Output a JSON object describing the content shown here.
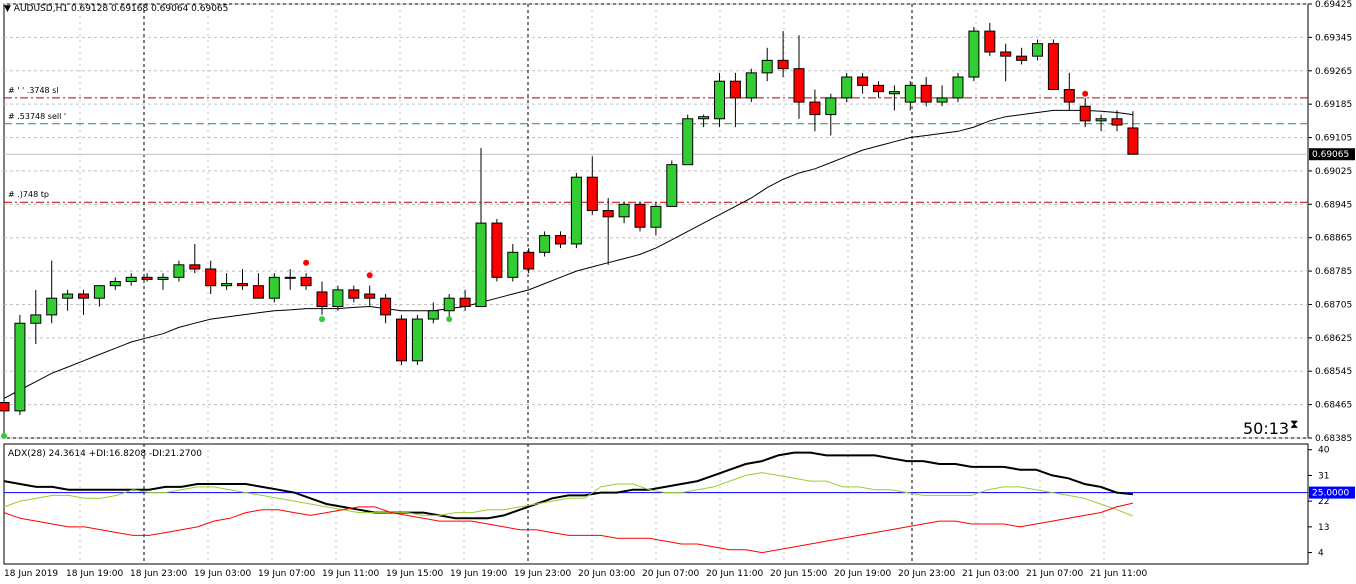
{
  "window": {
    "symbol_title": "AUDUSD,H1",
    "ohlc_text": "0.69128 0.69168 0.69064 0.69065",
    "timer": "50:13"
  },
  "colors": {
    "bull": "#32cd32",
    "bear": "#ff0000",
    "ma_line": "#000000",
    "grid": "#c0c0c0",
    "sl_line": "#c00000",
    "entry_line": "#2e8b57",
    "adx_line": "#000000",
    "plus_di": "#9acd32",
    "minus_di": "#ff0000",
    "level_line": "#0000ff"
  },
  "trade_lines": [
    {
      "label": "#  ' '  .3748 sl",
      "price": 0.692,
      "style": "sl"
    },
    {
      "label": "#  .53748 sell  '",
      "price": 0.69138,
      "style": "entry"
    },
    {
      "label": "#      .)748 tp",
      "price": 0.6895,
      "style": "tp"
    }
  ],
  "chart_data": [
    {
      "type": "candlestick",
      "title": "AUDUSD,H1",
      "ylim": [
        0.68385,
        0.69425
      ],
      "y_ticks": [
        "0.69425",
        "0.69345",
        "0.69265",
        "0.69185",
        "0.69105",
        "0.69025",
        "0.68945",
        "0.68865",
        "0.68785",
        "0.68705",
        "0.68625",
        "0.68545",
        "0.68465",
        "0.68385"
      ],
      "current_price": "0.69065",
      "x_tick_labels": [
        "18 Jun 2019",
        "18 Jun 19:00",
        "18 Jun 23:00",
        "19 Jun 03:00",
        "19 Jun 07:00",
        "19 Jun 11:00",
        "19 Jun 15:00",
        "19 Jun 19:00",
        "19 Jun 23:00",
        "20 Jun 03:00",
        "20 Jun 07:00",
        "20 Jun 11:00",
        "20 Jun 15:00",
        "20 Jun 19:00",
        "20 Jun 23:00",
        "21 Jun 03:00",
        "21 Jun 07:00",
        "21 Jun 11:00"
      ],
      "candles": [
        {
          "o": 0.6847,
          "h": 0.6849,
          "l": 0.684,
          "c": 0.6845
        },
        {
          "o": 0.6845,
          "h": 0.6868,
          "l": 0.6844,
          "c": 0.6866
        },
        {
          "o": 0.6866,
          "h": 0.6874,
          "l": 0.6861,
          "c": 0.6868
        },
        {
          "o": 0.6868,
          "h": 0.6881,
          "l": 0.6866,
          "c": 0.6872
        },
        {
          "o": 0.6872,
          "h": 0.6874,
          "l": 0.6869,
          "c": 0.6873
        },
        {
          "o": 0.6873,
          "h": 0.6874,
          "l": 0.6868,
          "c": 0.6872
        },
        {
          "o": 0.6872,
          "h": 0.6875,
          "l": 0.687,
          "c": 0.6875
        },
        {
          "o": 0.6875,
          "h": 0.6877,
          "l": 0.6874,
          "c": 0.6876
        },
        {
          "o": 0.6876,
          "h": 0.6878,
          "l": 0.6875,
          "c": 0.6877
        },
        {
          "o": 0.6877,
          "h": 0.6878,
          "l": 0.6876,
          "c": 0.68765
        },
        {
          "o": 0.68765,
          "h": 0.6878,
          "l": 0.6874,
          "c": 0.6877
        },
        {
          "o": 0.6877,
          "h": 0.6881,
          "l": 0.6876,
          "c": 0.688
        },
        {
          "o": 0.688,
          "h": 0.6885,
          "l": 0.6878,
          "c": 0.6879
        },
        {
          "o": 0.6879,
          "h": 0.6881,
          "l": 0.6873,
          "c": 0.6875
        },
        {
          "o": 0.6875,
          "h": 0.6878,
          "l": 0.6874,
          "c": 0.68755
        },
        {
          "o": 0.68755,
          "h": 0.6879,
          "l": 0.6874,
          "c": 0.6875
        },
        {
          "o": 0.6875,
          "h": 0.6878,
          "l": 0.6872,
          "c": 0.6872
        },
        {
          "o": 0.6872,
          "h": 0.6878,
          "l": 0.6871,
          "c": 0.6877
        },
        {
          "o": 0.6877,
          "h": 0.6879,
          "l": 0.6874,
          "c": 0.6877
        },
        {
          "o": 0.6877,
          "h": 0.6878,
          "l": 0.6874,
          "c": 0.6875
        },
        {
          "o": 0.68735,
          "h": 0.6876,
          "l": 0.6868,
          "c": 0.687
        },
        {
          "o": 0.687,
          "h": 0.6875,
          "l": 0.6869,
          "c": 0.6874
        },
        {
          "o": 0.6874,
          "h": 0.6875,
          "l": 0.6871,
          "c": 0.6872
        },
        {
          "o": 0.6873,
          "h": 0.6875,
          "l": 0.687,
          "c": 0.6872
        },
        {
          "o": 0.6872,
          "h": 0.6873,
          "l": 0.6866,
          "c": 0.6868
        },
        {
          "o": 0.6867,
          "h": 0.6868,
          "l": 0.6856,
          "c": 0.6857
        },
        {
          "o": 0.6857,
          "h": 0.6868,
          "l": 0.6856,
          "c": 0.6867
        },
        {
          "o": 0.6867,
          "h": 0.6871,
          "l": 0.6866,
          "c": 0.6869
        },
        {
          "o": 0.6869,
          "h": 0.6873,
          "l": 0.6867,
          "c": 0.6872
        },
        {
          "o": 0.6872,
          "h": 0.6874,
          "l": 0.6869,
          "c": 0.687
        },
        {
          "o": 0.687,
          "h": 0.6908,
          "l": 0.687,
          "c": 0.689
        },
        {
          "o": 0.689,
          "h": 0.6891,
          "l": 0.6876,
          "c": 0.6877
        },
        {
          "o": 0.6877,
          "h": 0.6885,
          "l": 0.6876,
          "c": 0.6883
        },
        {
          "o": 0.6883,
          "h": 0.6884,
          "l": 0.6878,
          "c": 0.6879
        },
        {
          "o": 0.6883,
          "h": 0.6888,
          "l": 0.6882,
          "c": 0.6887
        },
        {
          "o": 0.6887,
          "h": 0.6888,
          "l": 0.6884,
          "c": 0.6885
        },
        {
          "o": 0.6885,
          "h": 0.6902,
          "l": 0.6884,
          "c": 0.6901
        },
        {
          "o": 0.6901,
          "h": 0.6906,
          "l": 0.6892,
          "c": 0.6893
        },
        {
          "o": 0.6893,
          "h": 0.6896,
          "l": 0.688,
          "c": 0.68915
        },
        {
          "o": 0.68915,
          "h": 0.6895,
          "l": 0.689,
          "c": 0.68945
        },
        {
          "o": 0.68945,
          "h": 0.6895,
          "l": 0.6888,
          "c": 0.6889
        },
        {
          "o": 0.6889,
          "h": 0.6895,
          "l": 0.6887,
          "c": 0.6894
        },
        {
          "o": 0.6894,
          "h": 0.6905,
          "l": 0.6894,
          "c": 0.6904
        },
        {
          "o": 0.6904,
          "h": 0.6916,
          "l": 0.6904,
          "c": 0.6915
        },
        {
          "o": 0.6915,
          "h": 0.6916,
          "l": 0.6913,
          "c": 0.69155
        },
        {
          "o": 0.6915,
          "h": 0.6926,
          "l": 0.6913,
          "c": 0.6924
        },
        {
          "o": 0.6924,
          "h": 0.6926,
          "l": 0.6913,
          "c": 0.692
        },
        {
          "o": 0.692,
          "h": 0.6927,
          "l": 0.6919,
          "c": 0.6926
        },
        {
          "o": 0.6926,
          "h": 0.6932,
          "l": 0.6924,
          "c": 0.6929
        },
        {
          "o": 0.6929,
          "h": 0.6936,
          "l": 0.6925,
          "c": 0.6927
        },
        {
          "o": 0.6927,
          "h": 0.6935,
          "l": 0.6915,
          "c": 0.6919
        },
        {
          "o": 0.6919,
          "h": 0.6922,
          "l": 0.6912,
          "c": 0.6916
        },
        {
          "o": 0.6916,
          "h": 0.6921,
          "l": 0.6911,
          "c": 0.692
        },
        {
          "o": 0.692,
          "h": 0.6926,
          "l": 0.6919,
          "c": 0.6925
        },
        {
          "o": 0.6925,
          "h": 0.6926,
          "l": 0.6921,
          "c": 0.6923
        },
        {
          "o": 0.6923,
          "h": 0.6924,
          "l": 0.692,
          "c": 0.69215
        },
        {
          "o": 0.6921,
          "h": 0.6923,
          "l": 0.6917,
          "c": 0.69215
        },
        {
          "o": 0.6919,
          "h": 0.6924,
          "l": 0.6917,
          "c": 0.6923
        },
        {
          "o": 0.6923,
          "h": 0.6925,
          "l": 0.6918,
          "c": 0.6919
        },
        {
          "o": 0.6919,
          "h": 0.6923,
          "l": 0.6918,
          "c": 0.692
        },
        {
          "o": 0.692,
          "h": 0.6926,
          "l": 0.6919,
          "c": 0.6925
        },
        {
          "o": 0.6925,
          "h": 0.6937,
          "l": 0.6924,
          "c": 0.6936
        },
        {
          "o": 0.6936,
          "h": 0.6938,
          "l": 0.693,
          "c": 0.6931
        },
        {
          "o": 0.6931,
          "h": 0.6933,
          "l": 0.6924,
          "c": 0.693
        },
        {
          "o": 0.693,
          "h": 0.6932,
          "l": 0.6928,
          "c": 0.6929
        },
        {
          "o": 0.693,
          "h": 0.6934,
          "l": 0.6929,
          "c": 0.6933
        },
        {
          "o": 0.6933,
          "h": 0.6934,
          "l": 0.6923,
          "c": 0.6922
        },
        {
          "o": 0.6922,
          "h": 0.6926,
          "l": 0.6917,
          "c": 0.6919
        },
        {
          "o": 0.6918,
          "h": 0.692,
          "l": 0.6913,
          "c": 0.69145
        },
        {
          "o": 0.69145,
          "h": 0.6916,
          "l": 0.6912,
          "c": 0.6915
        },
        {
          "o": 0.6915,
          "h": 0.6917,
          "l": 0.6912,
          "c": 0.69135
        },
        {
          "o": 0.69128,
          "h": 0.69168,
          "l": 0.69064,
          "c": 0.69065
        }
      ],
      "ma": [
        0.6848,
        0.685,
        0.6852,
        0.6854,
        0.68555,
        0.6857,
        0.68585,
        0.686,
        0.68615,
        0.68625,
        0.68635,
        0.6865,
        0.6866,
        0.6867,
        0.68675,
        0.6868,
        0.68685,
        0.6869,
        0.68692,
        0.68695,
        0.68695,
        0.68695,
        0.68698,
        0.687,
        0.68695,
        0.6869,
        0.6869,
        0.6869,
        0.68695,
        0.687,
        0.6871,
        0.6872,
        0.6873,
        0.6874,
        0.68755,
        0.6877,
        0.68785,
        0.68795,
        0.68805,
        0.68815,
        0.68825,
        0.6884,
        0.6886,
        0.6888,
        0.689,
        0.6892,
        0.6894,
        0.6896,
        0.68985,
        0.69005,
        0.6902,
        0.6903,
        0.69045,
        0.6906,
        0.69075,
        0.69085,
        0.69095,
        0.69105,
        0.6911,
        0.69115,
        0.6912,
        0.6913,
        0.69145,
        0.69155,
        0.6916,
        0.69165,
        0.6917,
        0.6917,
        0.6917,
        0.69168,
        0.69165,
        0.6916
      ],
      "arrows_up": [
        {
          "index": 20,
          "price": 0.6867
        },
        {
          "index": 28,
          "price": 0.6867
        },
        {
          "index": 0,
          "price": 0.6839
        }
      ],
      "arrows_down": [
        {
          "index": 19,
          "price": 0.68805
        },
        {
          "index": 23,
          "price": 0.68775
        },
        {
          "index": 68,
          "price": 0.6921
        }
      ]
    },
    {
      "type": "line",
      "title": "ADX(28) 24.3614 +DI:16.8208 -DI:21.2700",
      "ylim": [
        0,
        42
      ],
      "y_ticks": [
        "40",
        "31",
        "22",
        "13",
        "4"
      ],
      "level": "25.0000",
      "series": [
        {
          "name": "ADX(28)",
          "values": [
            29,
            28,
            27,
            27,
            26,
            26,
            26,
            26,
            26,
            26,
            27,
            27,
            28,
            28,
            28,
            28,
            27,
            26,
            25,
            23,
            21,
            20,
            19,
            18,
            18,
            18,
            18,
            17,
            16,
            16,
            16,
            17,
            19,
            21,
            23,
            24,
            24,
            25,
            25,
            26,
            26,
            27,
            28,
            29,
            31,
            33,
            35,
            36,
            38,
            39,
            39,
            38,
            38,
            38,
            38,
            37,
            36,
            36,
            35,
            35,
            34,
            34,
            34,
            33,
            33,
            31,
            30,
            28,
            27,
            25,
            24.4
          ]
        },
        {
          "name": "+DI",
          "values": [
            20,
            22,
            23,
            24,
            24,
            23,
            23,
            24,
            26,
            25,
            25,
            26,
            27,
            27,
            26,
            25,
            24,
            23,
            22,
            21,
            20,
            19,
            18,
            18,
            18,
            18,
            17,
            17,
            18,
            18,
            19,
            19,
            20,
            21,
            22,
            23,
            23,
            27,
            28,
            28,
            26,
            25,
            25,
            26,
            27,
            29,
            31,
            32,
            31,
            30,
            29,
            29,
            27,
            27,
            26,
            26,
            25,
            24,
            24,
            24,
            24,
            26,
            27,
            27,
            26,
            25,
            24,
            23,
            21,
            19,
            16.8
          ]
        },
        {
          "name": "-DI",
          "values": [
            18,
            16,
            15,
            14,
            13,
            13,
            12,
            11,
            10,
            10,
            11,
            12,
            13,
            15,
            16,
            18,
            19,
            19,
            18,
            17,
            18,
            19,
            20,
            20,
            18,
            17,
            16,
            15,
            15,
            15,
            14,
            13,
            12,
            12,
            11,
            10,
            10,
            10,
            9,
            9,
            9,
            8,
            7,
            7,
            6,
            5,
            5,
            4,
            5,
            6,
            7,
            8,
            9,
            10,
            11,
            12,
            13,
            14,
            15,
            15,
            14,
            14,
            14,
            13,
            14,
            15,
            16,
            17,
            18,
            20,
            21.3
          ]
        }
      ]
    }
  ]
}
